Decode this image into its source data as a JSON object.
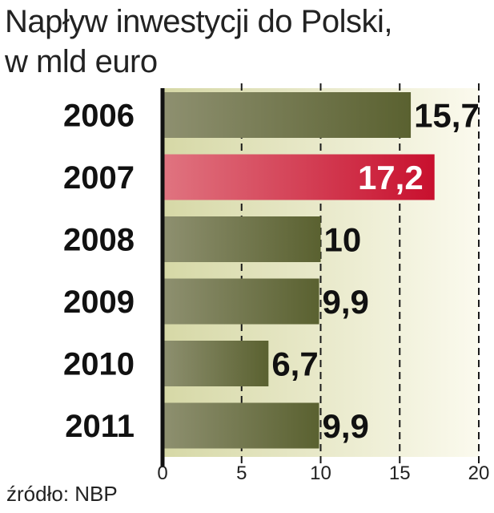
{
  "title_line1": "Napływ inwestycji do Polski,",
  "title_line2": "w mld euro",
  "source": "źródło: NBP",
  "colors": {
    "bar_dark": "#5a6130",
    "bar_light": "#8e9070",
    "highlight_dark": "#c8102e",
    "highlight_light": "#e07480",
    "panel_light": "#fbfaee",
    "panel_dark": "#d6d8a6"
  },
  "chart_data": {
    "type": "bar",
    "orientation": "horizontal",
    "title": "Napływ inwestycji do Polski, w mld euro",
    "categories": [
      "2006",
      "2007",
      "2008",
      "2009",
      "2010",
      "2011"
    ],
    "values": [
      15.7,
      17.2,
      10,
      9.9,
      6.7,
      9.9
    ],
    "value_labels": [
      "15,7",
      "17,2",
      "10",
      "9,9",
      "6,7",
      "9,9"
    ],
    "highlight_category": "2007",
    "xlim": [
      0,
      20
    ],
    "xticks": [
      0,
      5,
      10,
      15,
      20
    ],
    "xtick_labels": [
      "0",
      "5",
      "10",
      "15",
      "20"
    ],
    "grid": "vertical dashed"
  }
}
